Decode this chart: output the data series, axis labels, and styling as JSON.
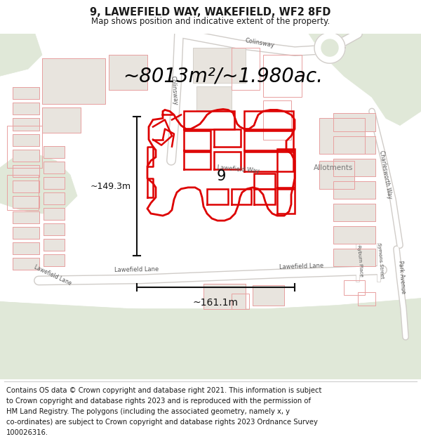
{
  "title_line1": "9, LAWEFIELD WAY, WAKEFIELD, WF2 8FD",
  "title_line2": "Map shows position and indicative extent of the property.",
  "area_text": "~8013m²/~1.980ac.",
  "dim_height": "~149.3m",
  "dim_width": "~161.1m",
  "property_number": "9",
  "allotments_label": "Allotments",
  "footer_lines": [
    "Contains OS data © Crown copyright and database right 2021. This information is subject",
    "to Crown copyright and database rights 2023 and is reproduced with the permission of",
    "HM Land Registry. The polygons (including the associated geometry, namely x, y",
    "co-ordinates) are subject to Crown copyright and database rights 2023 Ordnance Survey",
    "100026316."
  ],
  "map_bg": "#f2f0eb",
  "green_bg": "#e0e8d8",
  "road_color": "#ffffff",
  "road_edge": "#d0ccc8",
  "building_fill": "#e8e4de",
  "building_edge": "#c8c4bc",
  "red_color": "#dd0000",
  "light_red": "#e8a0a0",
  "pink_outline": "#e09090",
  "dark_color": "#1a1a1a",
  "dim_line_color": "#111111",
  "title_fontsize": 10.5,
  "subtitle_fontsize": 8.5,
  "area_fontsize": 20,
  "dim_fontsize": 9,
  "footer_fontsize": 7.2,
  "label_color": "#555555",
  "label_fontsize": 6
}
